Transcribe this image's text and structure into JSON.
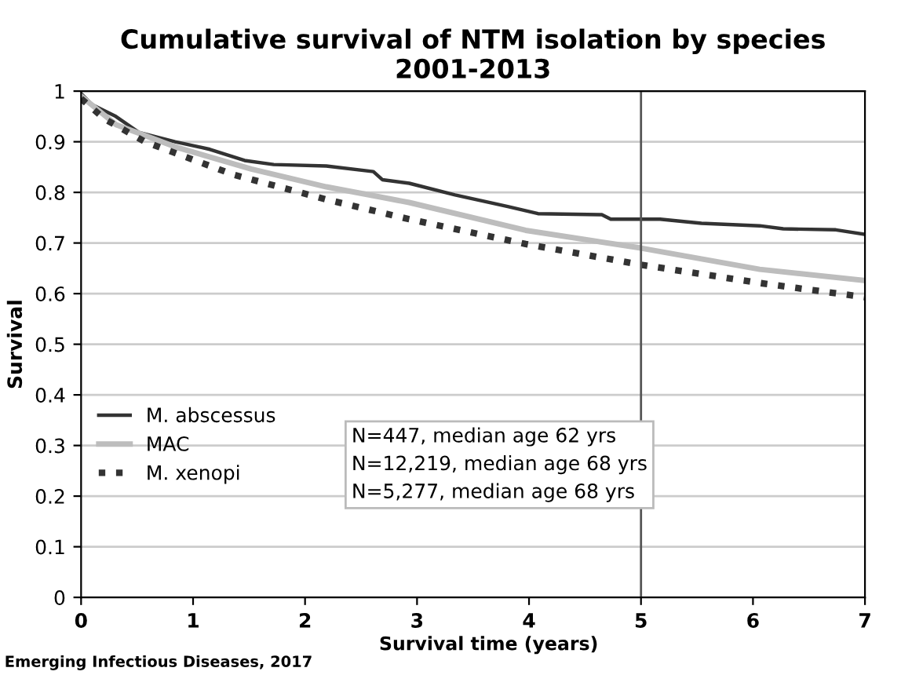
{
  "chart_data": {
    "type": "line",
    "title": "Cumulative survival of NTM isolation by species\n2001-2013",
    "xlabel": "Survival time (years)",
    "ylabel": "Survival",
    "xlim": [
      0,
      7
    ],
    "xticks": [
      0,
      1,
      2,
      3,
      4,
      5,
      6,
      7
    ],
    "ylim": [
      0,
      1
    ],
    "yticks": [
      0,
      0.1,
      0.2,
      0.3,
      0.4,
      0.5,
      0.6,
      0.7,
      0.8,
      0.9,
      1
    ],
    "grid": "y",
    "legend": "center left",
    "marker": "none",
    "series": [
      {
        "name": "M. abscessus",
        "color": "#333333",
        "line_style": "solid",
        "x": [
          0,
          0.1,
          0.31,
          0.52,
          0.84,
          1.15,
          1.46,
          1.72,
          2.19,
          2.61,
          2.69,
          2.93,
          3.34,
          3.81,
          4.08,
          4.65,
          4.73,
          5.17,
          5.54,
          6.06,
          6.27,
          6.74,
          7.0
        ],
        "values": [
          0.995,
          0.973,
          0.95,
          0.918,
          0.9,
          0.885,
          0.863,
          0.855,
          0.852,
          0.841,
          0.825,
          0.818,
          0.795,
          0.772,
          0.758,
          0.756,
          0.747,
          0.747,
          0.739,
          0.734,
          0.728,
          0.726,
          0.717
        ]
      },
      {
        "name": "MAC",
        "color": "#bdbdbd",
        "line_style": "solid",
        "x": [
          0,
          0.31,
          0.84,
          1.52,
          2.19,
          2.93,
          3.97,
          5.0,
          6.06,
          7.0
        ],
        "values": [
          0.99,
          0.934,
          0.89,
          0.846,
          0.811,
          0.78,
          0.725,
          0.69,
          0.648,
          0.626
        ]
      },
      {
        "name": "M. xenopi",
        "color": "#333333",
        "line_style": "dotted",
        "x": [
          0,
          0.21,
          0.57,
          1.36,
          2.19,
          2.93,
          3.97,
          5.0,
          6.06,
          7.0
        ],
        "values": [
          0.985,
          0.945,
          0.9,
          0.835,
          0.786,
          0.747,
          0.698,
          0.657,
          0.621,
          0.593
        ]
      }
    ],
    "ref_lines": [
      {
        "axis": "x",
        "value": 5,
        "color": "#555555",
        "line_style": "solid"
      }
    ],
    "annotations": [
      "N=447, median age 62 yrs\nN=12,219, median age 68 yrs\nN=5,277, median age 68 yrs",
      "Emerging Infectious Diseases, 2017"
    ]
  }
}
